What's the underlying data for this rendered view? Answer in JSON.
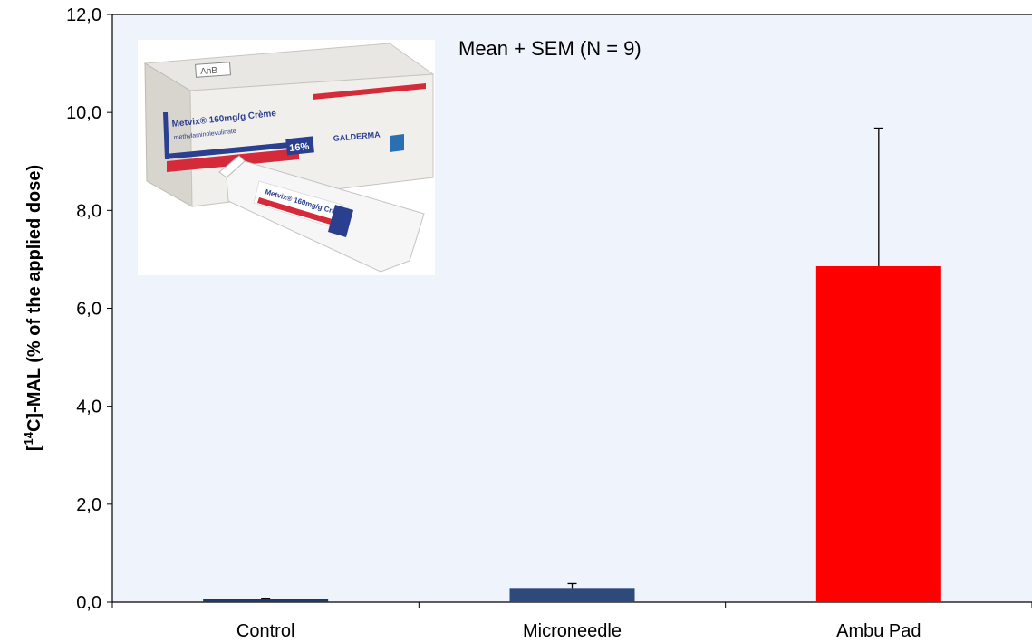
{
  "chart_data": {
    "type": "bar",
    "categories": [
      "Control",
      "Microneedle",
      "Ambu Pad"
    ],
    "values": [
      0.07,
      0.29,
      6.86
    ],
    "errors": [
      0.01,
      0.09,
      2.82
    ],
    "colors": [
      "#1F3864",
      "#2E4A7A",
      "#FF0000"
    ],
    "ylabel_prefix": "[",
    "ylabel_sup": "14",
    "ylabel_suffix": "C]-MAL (% of the applied dose)",
    "ylim": [
      0,
      12
    ],
    "yticks": [
      "0,0",
      "2,0",
      "4,0",
      "6,0",
      "8,0",
      "10,0",
      "12,0"
    ],
    "annotation": "Mean + SEM (N = 9)",
    "plot_background": "#EEF3FC",
    "grid": false
  },
  "inset_image": {
    "icon": "metvix-cream-product-photo",
    "box_label": "Metvix® 160mg/g Crème",
    "box_sublabel": "methylaminolevulinate",
    "brand": "GALDERMA",
    "percent_badge": "16%",
    "tube_label": "Metvix® 160mg/g Crème",
    "tag": "AhB"
  }
}
